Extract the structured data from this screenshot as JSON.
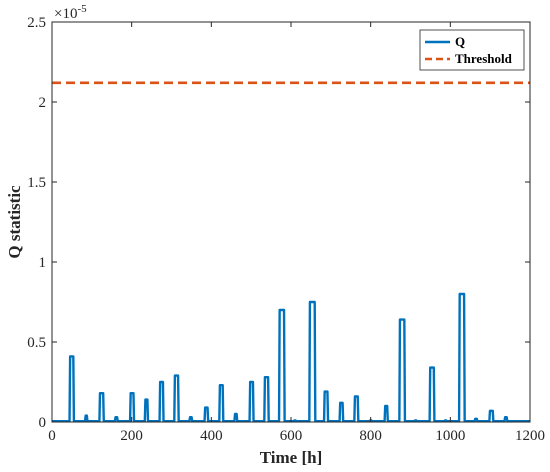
{
  "chart_data": {
    "type": "line",
    "xlabel": "Time [h]",
    "ylabel": "Q statistic",
    "y_exponent": "×10",
    "y_exponent_power": "-5",
    "xlim": [
      0,
      1200
    ],
    "ylim": [
      0,
      2.5
    ],
    "xticks": [
      0,
      200,
      400,
      600,
      800,
      1000,
      1200
    ],
    "yticks": [
      0,
      0.5,
      1,
      1.5,
      2,
      2.5
    ],
    "xtick_labels": [
      "0",
      "200",
      "400",
      "600",
      "800",
      1000,
      1200
    ],
    "ytick_labels": [
      "0",
      "0.5",
      "1",
      "1.5",
      "2",
      "2.5"
    ],
    "legend_position": "top-right",
    "grid": false,
    "series": [
      {
        "name": "Q",
        "color": "#0072BD",
        "style": "solid",
        "baseline": 0.005,
        "pulses": [
          {
            "start": 44,
            "end": 55,
            "value": 0.41
          },
          {
            "start": 83,
            "end": 89,
            "value": 0.04
          },
          {
            "start": 119,
            "end": 130,
            "value": 0.18
          },
          {
            "start": 158,
            "end": 165,
            "value": 0.03
          },
          {
            "start": 196,
            "end": 206,
            "value": 0.18
          },
          {
            "start": 233,
            "end": 241,
            "value": 0.14
          },
          {
            "start": 270,
            "end": 280,
            "value": 0.25
          },
          {
            "start": 307,
            "end": 318,
            "value": 0.29
          },
          {
            "start": 345,
            "end": 352,
            "value": 0.03
          },
          {
            "start": 383,
            "end": 392,
            "value": 0.09
          },
          {
            "start": 420,
            "end": 430,
            "value": 0.23
          },
          {
            "start": 458,
            "end": 465,
            "value": 0.05
          },
          {
            "start": 496,
            "end": 506,
            "value": 0.25
          },
          {
            "start": 533,
            "end": 544,
            "value": 0.28
          },
          {
            "start": 570,
            "end": 584,
            "value": 0.7
          },
          {
            "start": 607,
            "end": 613,
            "value": 0.01
          },
          {
            "start": 646,
            "end": 661,
            "value": 0.75
          },
          {
            "start": 683,
            "end": 693,
            "value": 0.19
          },
          {
            "start": 722,
            "end": 731,
            "value": 0.12
          },
          {
            "start": 759,
            "end": 769,
            "value": 0.16
          },
          {
            "start": 797,
            "end": 803,
            "value": 0.01
          },
          {
            "start": 835,
            "end": 843,
            "value": 0.1
          },
          {
            "start": 872,
            "end": 886,
            "value": 0.64
          },
          {
            "start": 910,
            "end": 916,
            "value": 0.01
          },
          {
            "start": 948,
            "end": 960,
            "value": 0.34
          },
          {
            "start": 985,
            "end": 991,
            "value": 0.01
          },
          {
            "start": 1022,
            "end": 1036,
            "value": 0.8
          },
          {
            "start": 1061,
            "end": 1068,
            "value": 0.02
          },
          {
            "start": 1098,
            "end": 1108,
            "value": 0.07
          },
          {
            "start": 1136,
            "end": 1143,
            "value": 0.03
          }
        ]
      },
      {
        "name": "Threshold",
        "color": "#D95319",
        "style": "dashed",
        "value": 2.12
      }
    ]
  }
}
